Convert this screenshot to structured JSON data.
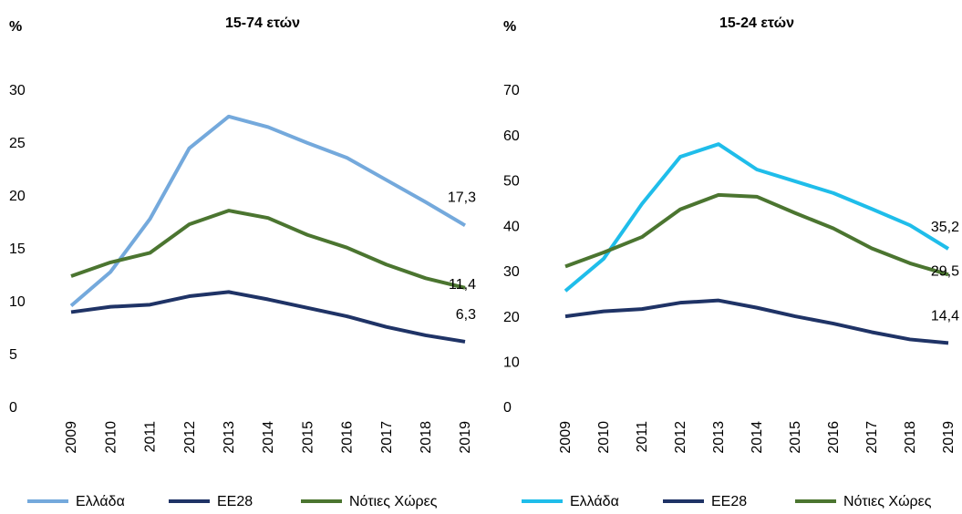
{
  "chart_data": [
    {
      "type": "line",
      "title": "15-74 ετών",
      "y_label": "%",
      "categories": [
        "2009",
        "2010",
        "2011",
        "2012",
        "2013",
        "2014",
        "2015",
        "2016",
        "2017",
        "2018",
        "2019"
      ],
      "ylim": [
        0,
        30
      ],
      "yticks": [
        0,
        5,
        10,
        15,
        20,
        25,
        30
      ],
      "grid": false,
      "legend": "bottom",
      "series": [
        {
          "name": "Ελλάδα",
          "color": "#74a9dc",
          "values": [
            9.7,
            12.9,
            17.9,
            24.6,
            27.6,
            26.6,
            25.1,
            23.7,
            21.6,
            19.5,
            17.3
          ],
          "value_labels": [
            null,
            null,
            null,
            null,
            null,
            null,
            null,
            null,
            null,
            null,
            "17,3"
          ]
        },
        {
          "name": "ΕΕ28",
          "color": "#1f3366",
          "values": [
            9.1,
            9.6,
            9.8,
            10.6,
            11.0,
            10.3,
            9.5,
            8.7,
            7.7,
            6.9,
            6.3
          ],
          "value_labels": [
            null,
            null,
            null,
            null,
            null,
            null,
            null,
            null,
            null,
            null,
            "6,3"
          ]
        },
        {
          "name": "Νότιες Χώρες",
          "color": "#4b7530",
          "values": [
            12.5,
            13.8,
            14.7,
            17.4,
            18.7,
            18.0,
            16.4,
            15.2,
            13.6,
            12.3,
            11.4
          ],
          "value_labels": [
            null,
            null,
            null,
            null,
            null,
            null,
            null,
            null,
            null,
            null,
            "11,4"
          ]
        }
      ]
    },
    {
      "type": "line",
      "title": "15-24 ετών",
      "y_label": "%",
      "categories": [
        "2009",
        "2010",
        "2011",
        "2012",
        "2013",
        "2014",
        "2015",
        "2016",
        "2017",
        "2018",
        "2019"
      ],
      "ylim": [
        0,
        70
      ],
      "yticks": [
        0,
        10,
        20,
        30,
        40,
        50,
        60,
        70
      ],
      "grid": false,
      "legend": "bottom",
      "series": [
        {
          "name": "Ελλάδα",
          "color": "#1fbdea",
          "values": [
            25.9,
            33.0,
            45.1,
            55.5,
            58.3,
            52.7,
            50.1,
            47.5,
            44.0,
            40.4,
            35.2
          ],
          "value_labels": [
            null,
            null,
            null,
            null,
            null,
            null,
            null,
            null,
            null,
            null,
            "35,2"
          ]
        },
        {
          "name": "ΕΕ28",
          "color": "#1f3366",
          "values": [
            20.3,
            21.4,
            21.9,
            23.3,
            23.8,
            22.2,
            20.3,
            18.7,
            16.8,
            15.2,
            14.4
          ],
          "value_labels": [
            null,
            null,
            null,
            null,
            null,
            null,
            null,
            null,
            null,
            null,
            "14,4"
          ]
        },
        {
          "name": "Νότιες Χώρες",
          "color": "#4b7530",
          "values": [
            31.3,
            34.4,
            37.8,
            43.9,
            47.1,
            46.7,
            43.1,
            39.7,
            35.3,
            32.0,
            29.5
          ],
          "value_labels": [
            null,
            null,
            null,
            null,
            null,
            null,
            null,
            null,
            null,
            null,
            "29,5"
          ]
        }
      ]
    }
  ]
}
